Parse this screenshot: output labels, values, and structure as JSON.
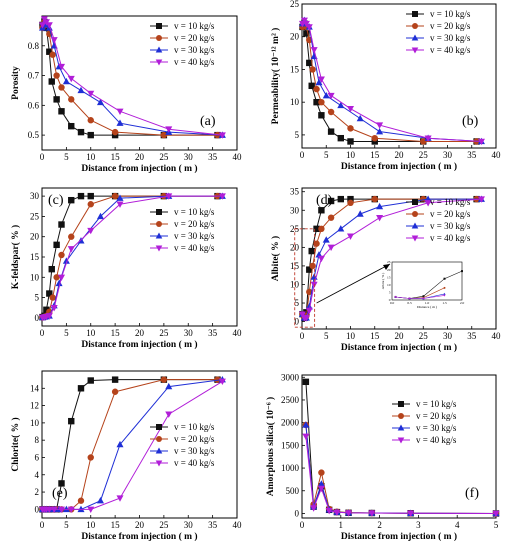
{
  "chart_data": [
    {
      "id": "a",
      "type": "line",
      "panel_label": "(a)",
      "xlabel": "Distance from injection ( m )",
      "ylabel": "Porosity",
      "xlim": [
        0,
        40
      ],
      "ylim": [
        0.45,
        0.9
      ],
      "xticks": [
        0,
        5,
        10,
        15,
        20,
        25,
        30,
        35,
        40
      ],
      "yticks": [
        0.5,
        0.6,
        0.7,
        0.8
      ],
      "legend_position": "top-right",
      "series": [
        {
          "name": "v = 10 kg/s",
          "color": "#111111",
          "marker": "square",
          "x": [
            0.1,
            0.5,
            0.9,
            1.5,
            2,
            3,
            4,
            6,
            8,
            10,
            15,
            25,
            36
          ],
          "y": [
            0.87,
            0.88,
            0.86,
            0.78,
            0.68,
            0.62,
            0.58,
            0.53,
            0.51,
            0.5,
            0.5,
            0.5,
            0.5
          ]
        },
        {
          "name": "v = 20 kg/s",
          "color": "#b5431b",
          "marker": "circle",
          "x": [
            0.1,
            0.5,
            0.9,
            1.5,
            2.2,
            3,
            4,
            6,
            10,
            15,
            25,
            36
          ],
          "y": [
            0.86,
            0.88,
            0.87,
            0.84,
            0.77,
            0.7,
            0.66,
            0.62,
            0.55,
            0.51,
            0.5,
            0.5
          ]
        },
        {
          "name": "v = 30 kg/s",
          "color": "#1f2fd6",
          "marker": "triangle",
          "x": [
            0.1,
            0.5,
            0.9,
            1.5,
            2.5,
            3.5,
            5,
            8,
            12,
            16,
            26,
            37
          ],
          "y": [
            0.86,
            0.88,
            0.87,
            0.86,
            0.8,
            0.73,
            0.68,
            0.65,
            0.61,
            0.54,
            0.51,
            0.5
          ]
        },
        {
          "name": "v = 40 kg/s",
          "color": "#b11ed8",
          "marker": "triangle-down",
          "x": [
            0.1,
            0.5,
            0.9,
            1.5,
            2.5,
            4,
            6,
            10,
            16,
            26,
            37
          ],
          "y": [
            0.87,
            0.89,
            0.88,
            0.87,
            0.82,
            0.73,
            0.69,
            0.64,
            0.58,
            0.52,
            0.5
          ]
        }
      ]
    },
    {
      "id": "b",
      "type": "line",
      "panel_label": "(b)",
      "xlabel": "Distance from injection ( m )",
      "ylabel": "Permeability( 10⁻¹² m² )",
      "xlim": [
        0,
        40
      ],
      "ylim": [
        3,
        25
      ],
      "xticks": [
        0,
        5,
        10,
        15,
        20,
        25,
        30,
        35,
        40
      ],
      "yticks": [
        5,
        10,
        15,
        20,
        25
      ],
      "legend_position": "top-right",
      "series": [
        {
          "name": "v = 10 kg/s",
          "color": "#111111",
          "marker": "square",
          "x": [
            0.1,
            0.5,
            0.9,
            1.5,
            2,
            3,
            4,
            6,
            8,
            10,
            15,
            25,
            36
          ],
          "y": [
            21.5,
            22.0,
            20.5,
            16.0,
            12.5,
            10.0,
            8.0,
            5.5,
            4.5,
            4.0,
            4.0,
            4.0,
            4.0
          ]
        },
        {
          "name": "v = 20 kg/s",
          "color": "#b5431b",
          "marker": "circle",
          "x": [
            0.1,
            0.5,
            0.9,
            1.5,
            2.2,
            3,
            4,
            6,
            10,
            15,
            25,
            36
          ],
          "y": [
            21.5,
            22.0,
            21.5,
            19.5,
            15.0,
            12.0,
            10.0,
            8.5,
            6.0,
            4.5,
            4.0,
            4.0
          ]
        },
        {
          "name": "v = 30 kg/s",
          "color": "#1f2fd6",
          "marker": "triangle",
          "x": [
            0.1,
            0.5,
            0.9,
            1.5,
            2.5,
            3.5,
            5,
            8,
            12,
            16,
            26,
            37
          ],
          "y": [
            22.0,
            22.5,
            22.0,
            21.5,
            17.0,
            13.0,
            11.0,
            9.5,
            7.5,
            5.5,
            4.5,
            4.0
          ]
        },
        {
          "name": "v = 40 kg/s",
          "color": "#b11ed8",
          "marker": "triangle-down",
          "x": [
            0.1,
            0.5,
            0.9,
            1.5,
            2.5,
            4,
            6,
            10,
            16,
            26,
            37
          ],
          "y": [
            22.0,
            22.5,
            22.0,
            21.5,
            18.0,
            13.5,
            11.0,
            9.0,
            6.5,
            4.5,
            4.0
          ]
        }
      ]
    },
    {
      "id": "c",
      "type": "line",
      "panel_label": "(c)",
      "xlabel": "Distance from injection ( m )",
      "ylabel": "K-feldspar( % )",
      "xlim": [
        0,
        40
      ],
      "ylim": [
        -2,
        32
      ],
      "xticks": [
        0,
        5,
        10,
        15,
        20,
        25,
        30,
        35,
        40
      ],
      "yticks": [
        0,
        5,
        10,
        15,
        20,
        25,
        30
      ],
      "legend_position": "right",
      "series": [
        {
          "name": "v = 10 kg/s",
          "color": "#111111",
          "marker": "square",
          "x": [
            0.1,
            0.5,
            0.9,
            1.5,
            2,
            3,
            4,
            6,
            8,
            10,
            15,
            25,
            36
          ],
          "y": [
            0.2,
            0.5,
            2.0,
            6.0,
            12.0,
            18.0,
            23.0,
            29.0,
            30.0,
            30.0,
            30.0,
            30.0,
            30.0
          ]
        },
        {
          "name": "v = 20 kg/s",
          "color": "#b5431b",
          "marker": "circle",
          "x": [
            0.1,
            0.5,
            0.9,
            1.5,
            2.2,
            3,
            4,
            6,
            10,
            15,
            25,
            36
          ],
          "y": [
            0.1,
            0.3,
            0.5,
            1.5,
            5.0,
            10.0,
            15.5,
            20.0,
            28.0,
            30.0,
            30.0,
            30.0
          ]
        },
        {
          "name": "v = 30 kg/s",
          "color": "#1f2fd6",
          "marker": "triangle",
          "x": [
            0.1,
            0.5,
            0.9,
            1.5,
            2.5,
            3.5,
            5,
            8,
            12,
            16,
            26,
            37
          ],
          "y": [
            0.1,
            0.2,
            0.3,
            0.5,
            3.0,
            8.5,
            14.0,
            19.0,
            25.0,
            29.5,
            30.0,
            30.0
          ]
        },
        {
          "name": "v = 40 kg/s",
          "color": "#b11ed8",
          "marker": "triangle-down",
          "x": [
            0.1,
            0.5,
            0.9,
            1.5,
            2.5,
            4,
            6,
            10,
            16,
            26,
            37
          ],
          "y": [
            0.1,
            0.2,
            0.3,
            0.5,
            2.5,
            10.0,
            17.0,
            21.5,
            28.0,
            30.0,
            30.0
          ]
        }
      ]
    },
    {
      "id": "d",
      "type": "line",
      "panel_label": "(d)",
      "xlabel": "Distance from injection ( m )",
      "ylabel": "Albite( % )",
      "xlim": [
        0,
        40
      ],
      "ylim": [
        -2,
        36
      ],
      "xticks": [
        0,
        5,
        10,
        15,
        20,
        25,
        30,
        35,
        40
      ],
      "yticks": [
        0,
        5,
        10,
        15,
        20,
        25,
        30,
        35
      ],
      "legend_position": "top-right",
      "series": [
        {
          "name": "v = 10 kg/s",
          "color": "#111111",
          "marker": "square",
          "x": [
            0.1,
            0.5,
            0.9,
            1.5,
            2,
            3,
            4,
            6,
            8,
            10,
            15,
            25,
            36
          ],
          "y": [
            2.0,
            1.0,
            2.5,
            14.0,
            19.0,
            25.0,
            30.0,
            32.5,
            33.0,
            33.0,
            33.0,
            33.0,
            33.0
          ]
        },
        {
          "name": "v = 20 kg/s",
          "color": "#b5431b",
          "marker": "circle",
          "x": [
            0.1,
            0.5,
            0.9,
            1.5,
            2.2,
            3,
            4,
            6,
            10,
            15,
            25,
            36
          ],
          "y": [
            2.0,
            1.0,
            1.5,
            8.0,
            15.0,
            21.0,
            25.0,
            28.0,
            32.0,
            33.0,
            33.0,
            33.0
          ]
        },
        {
          "name": "v = 30 kg/s",
          "color": "#1f2fd6",
          "marker": "triangle",
          "x": [
            0.1,
            0.5,
            0.9,
            1.5,
            2.5,
            3.5,
            5,
            8,
            12,
            16,
            26,
            37
          ],
          "y": [
            2.0,
            1.0,
            1.0,
            4.0,
            12.0,
            18.0,
            22.0,
            25.0,
            29.0,
            31.0,
            33.0,
            33.0
          ]
        },
        {
          "name": "v = 40 kg/s",
          "color": "#b11ed8",
          "marker": "triangle-down",
          "x": [
            0.1,
            0.5,
            0.9,
            1.5,
            2.5,
            4,
            6,
            10,
            16,
            26,
            37
          ],
          "y": [
            2.0,
            1.0,
            1.0,
            3.0,
            10.0,
            17.0,
            20.0,
            23.0,
            28.0,
            32.0,
            33.0
          ]
        }
      ],
      "inset": {
        "xlabel": "Distance ( m )",
        "ylabel": "Albite ( % )",
        "xlim": [
          0,
          2
        ],
        "ylim": [
          0,
          25
        ],
        "xticks": [
          "0.0",
          "0.5",
          "1.0",
          "1.5",
          "2.0"
        ],
        "yticks": [
          "0",
          "5",
          "10",
          "15",
          "20",
          "25"
        ]
      }
    },
    {
      "id": "e",
      "type": "line",
      "panel_label": "(e)",
      "xlabel": "Distance from injection ( m )",
      "ylabel": "Chlorite( % )",
      "xlim": [
        0,
        40
      ],
      "ylim": [
        -1,
        16
      ],
      "xticks": [
        0,
        5,
        10,
        15,
        20,
        25,
        30,
        35,
        40
      ],
      "yticks": [
        0,
        2,
        4,
        6,
        8,
        10,
        12,
        14
      ],
      "legend_position": "right",
      "series": [
        {
          "name": "v = 10 kg/s",
          "color": "#111111",
          "marker": "square",
          "x": [
            0.1,
            0.5,
            0.9,
            1.5,
            2,
            3,
            4,
            6,
            8,
            10,
            15,
            25,
            36
          ],
          "y": [
            0,
            0,
            0,
            0,
            0,
            0,
            3.0,
            10.2,
            14.0,
            14.9,
            15.0,
            15.0,
            15.0
          ]
        },
        {
          "name": "v = 20 kg/s",
          "color": "#b5431b",
          "marker": "circle",
          "x": [
            0.1,
            0.5,
            0.9,
            1.5,
            2.2,
            3,
            4,
            6,
            8,
            10,
            15,
            25,
            36
          ],
          "y": [
            0,
            0,
            0,
            0,
            0,
            0,
            0,
            0,
            1.0,
            6.0,
            13.6,
            15.0,
            15.0
          ]
        },
        {
          "name": "v = 30 kg/s",
          "color": "#1f2fd6",
          "marker": "triangle",
          "x": [
            0.1,
            0.5,
            0.9,
            1.5,
            2.5,
            3.5,
            5,
            8,
            12,
            16,
            26,
            37
          ],
          "y": [
            0,
            0,
            0,
            0,
            0,
            0,
            0,
            0,
            1.0,
            7.5,
            14.2,
            15.0
          ]
        },
        {
          "name": "v = 40 kg/s",
          "color": "#b11ed8",
          "marker": "triangle-down",
          "x": [
            0.1,
            0.5,
            0.9,
            1.5,
            2.5,
            4,
            6,
            10,
            16,
            26,
            37
          ],
          "y": [
            0,
            0,
            0,
            0,
            0,
            0,
            0,
            0,
            1.3,
            11.0,
            14.8
          ]
        }
      ]
    },
    {
      "id": "f",
      "type": "line",
      "panel_label": "(f)",
      "xlabel": "Distance from injection ( m )",
      "ylabel": "Amorphous silica( 10⁻⁶ )",
      "xlim": [
        0,
        5
      ],
      "ylim": [
        -100,
        3050
      ],
      "xticks": [
        0,
        1,
        2,
        3,
        4,
        5
      ],
      "yticks": [
        0,
        500,
        1000,
        1500,
        2000,
        2500,
        3000
      ],
      "legend_position": "center",
      "series": [
        {
          "name": "v = 10 kg/s",
          "color": "#111111",
          "marker": "square",
          "x": [
            0.1,
            0.3,
            0.5,
            0.7,
            0.9,
            1.2,
            1.8,
            2.8,
            5
          ],
          "y": [
            2900,
            150,
            600,
            80,
            30,
            15,
            10,
            5,
            0
          ]
        },
        {
          "name": "v = 20 kg/s",
          "color": "#b5431b",
          "marker": "circle",
          "x": [
            0.1,
            0.3,
            0.5,
            0.7,
            0.9,
            1.2,
            1.8,
            2.8,
            5
          ],
          "y": [
            1950,
            200,
            900,
            100,
            40,
            20,
            10,
            5,
            0
          ]
        },
        {
          "name": "v = 30 kg/s",
          "color": "#1f2fd6",
          "marker": "triangle",
          "x": [
            0.1,
            0.3,
            0.5,
            0.7,
            0.9,
            1.2,
            1.8,
            2.8,
            5
          ],
          "y": [
            1950,
            150,
            650,
            80,
            30,
            15,
            10,
            5,
            0
          ]
        },
        {
          "name": "v = 40 kg/s",
          "color": "#b11ed8",
          "marker": "triangle-down",
          "x": [
            0.1,
            0.3,
            0.5,
            0.7,
            0.9,
            1.2,
            1.8,
            2.8,
            5
          ],
          "y": [
            1700,
            120,
            550,
            60,
            25,
            12,
            8,
            4,
            0
          ]
        }
      ]
    }
  ]
}
